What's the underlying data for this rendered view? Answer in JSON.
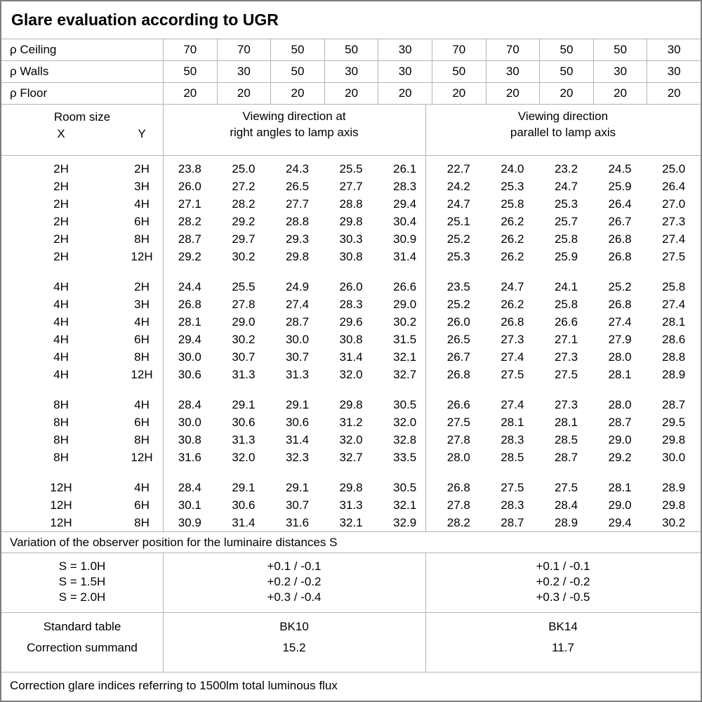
{
  "title": "Glare evaluation according to UGR",
  "colors": {
    "background": "#ffffff",
    "text": "#000000",
    "grid_line": "#b4b4b4",
    "outer_border": "#7f7f7f"
  },
  "reflectance": {
    "rows": [
      {
        "label": "ρ Ceiling",
        "values": [
          "70",
          "70",
          "50",
          "50",
          "30",
          "70",
          "70",
          "50",
          "50",
          "30"
        ]
      },
      {
        "label": "ρ Walls",
        "values": [
          "50",
          "30",
          "50",
          "30",
          "30",
          "50",
          "30",
          "50",
          "30",
          "30"
        ]
      },
      {
        "label": "ρ Floor",
        "values": [
          "20",
          "20",
          "20",
          "20",
          "20",
          "20",
          "20",
          "20",
          "20",
          "20"
        ]
      }
    ]
  },
  "header": {
    "room_size_label": "Room size",
    "x_label": "X",
    "y_label": "Y",
    "left_line1": "Viewing direction at",
    "left_line2": "right angles to lamp axis",
    "right_line1": "Viewing direction",
    "right_line2": "parallel to lamp axis"
  },
  "groups": [
    {
      "rows": [
        {
          "x": "2H",
          "y": "2H",
          "left": [
            "23.8",
            "25.0",
            "24.3",
            "25.5",
            "26.1"
          ],
          "right": [
            "22.7",
            "24.0",
            "23.2",
            "24.5",
            "25.0"
          ]
        },
        {
          "x": "2H",
          "y": "3H",
          "left": [
            "26.0",
            "27.2",
            "26.5",
            "27.7",
            "28.3"
          ],
          "right": [
            "24.2",
            "25.3",
            "24.7",
            "25.9",
            "26.4"
          ]
        },
        {
          "x": "2H",
          "y": "4H",
          "left": [
            "27.1",
            "28.2",
            "27.7",
            "28.8",
            "29.4"
          ],
          "right": [
            "24.7",
            "25.8",
            "25.3",
            "26.4",
            "27.0"
          ]
        },
        {
          "x": "2H",
          "y": "6H",
          "left": [
            "28.2",
            "29.2",
            "28.8",
            "29.8",
            "30.4"
          ],
          "right": [
            "25.1",
            "26.2",
            "25.7",
            "26.7",
            "27.3"
          ]
        },
        {
          "x": "2H",
          "y": "8H",
          "left": [
            "28.7",
            "29.7",
            "29.3",
            "30.3",
            "30.9"
          ],
          "right": [
            "25.2",
            "26.2",
            "25.8",
            "26.8",
            "27.4"
          ]
        },
        {
          "x": "2H",
          "y": "12H",
          "left": [
            "29.2",
            "30.2",
            "29.8",
            "30.8",
            "31.4"
          ],
          "right": [
            "25.3",
            "26.2",
            "25.9",
            "26.8",
            "27.5"
          ]
        }
      ]
    },
    {
      "rows": [
        {
          "x": "4H",
          "y": "2H",
          "left": [
            "24.4",
            "25.5",
            "24.9",
            "26.0",
            "26.6"
          ],
          "right": [
            "23.5",
            "24.7",
            "24.1",
            "25.2",
            "25.8"
          ]
        },
        {
          "x": "4H",
          "y": "3H",
          "left": [
            "26.8",
            "27.8",
            "27.4",
            "28.3",
            "29.0"
          ],
          "right": [
            "25.2",
            "26.2",
            "25.8",
            "26.8",
            "27.4"
          ]
        },
        {
          "x": "4H",
          "y": "4H",
          "left": [
            "28.1",
            "29.0",
            "28.7",
            "29.6",
            "30.2"
          ],
          "right": [
            "26.0",
            "26.8",
            "26.6",
            "27.4",
            "28.1"
          ]
        },
        {
          "x": "4H",
          "y": "6H",
          "left": [
            "29.4",
            "30.2",
            "30.0",
            "30.8",
            "31.5"
          ],
          "right": [
            "26.5",
            "27.3",
            "27.1",
            "27.9",
            "28.6"
          ]
        },
        {
          "x": "4H",
          "y": "8H",
          "left": [
            "30.0",
            "30.7",
            "30.7",
            "31.4",
            "32.1"
          ],
          "right": [
            "26.7",
            "27.4",
            "27.3",
            "28.0",
            "28.8"
          ]
        },
        {
          "x": "4H",
          "y": "12H",
          "left": [
            "30.6",
            "31.3",
            "31.3",
            "32.0",
            "32.7"
          ],
          "right": [
            "26.8",
            "27.5",
            "27.5",
            "28.1",
            "28.9"
          ]
        }
      ]
    },
    {
      "rows": [
        {
          "x": "8H",
          "y": "4H",
          "left": [
            "28.4",
            "29.1",
            "29.1",
            "29.8",
            "30.5"
          ],
          "right": [
            "26.6",
            "27.4",
            "27.3",
            "28.0",
            "28.7"
          ]
        },
        {
          "x": "8H",
          "y": "6H",
          "left": [
            "30.0",
            "30.6",
            "30.6",
            "31.2",
            "32.0"
          ],
          "right": [
            "27.5",
            "28.1",
            "28.1",
            "28.7",
            "29.5"
          ]
        },
        {
          "x": "8H",
          "y": "8H",
          "left": [
            "30.8",
            "31.3",
            "31.4",
            "32.0",
            "32.8"
          ],
          "right": [
            "27.8",
            "28.3",
            "28.5",
            "29.0",
            "29.8"
          ]
        },
        {
          "x": "8H",
          "y": "12H",
          "left": [
            "31.6",
            "32.0",
            "32.3",
            "32.7",
            "33.5"
          ],
          "right": [
            "28.0",
            "28.5",
            "28.7",
            "29.2",
            "30.0"
          ]
        }
      ]
    },
    {
      "rows": [
        {
          "x": "12H",
          "y": "4H",
          "left": [
            "28.4",
            "29.1",
            "29.1",
            "29.8",
            "30.5"
          ],
          "right": [
            "26.8",
            "27.5",
            "27.5",
            "28.1",
            "28.9"
          ]
        },
        {
          "x": "12H",
          "y": "6H",
          "left": [
            "30.1",
            "30.6",
            "30.7",
            "31.3",
            "32.1"
          ],
          "right": [
            "27.8",
            "28.3",
            "28.4",
            "29.0",
            "29.8"
          ]
        },
        {
          "x": "12H",
          "y": "8H",
          "left": [
            "30.9",
            "31.4",
            "31.6",
            "32.1",
            "32.9"
          ],
          "right": [
            "28.2",
            "28.7",
            "28.9",
            "29.4",
            "30.2"
          ]
        }
      ]
    }
  ],
  "variation": {
    "note": "Variation of the observer position for the luminaire distances S",
    "s_labels": [
      "S = 1.0H",
      "S = 1.5H",
      "S = 2.0H"
    ],
    "left": [
      "+0.1 / -0.1",
      "+0.2 / -0.2",
      "+0.3 / -0.4"
    ],
    "right": [
      "+0.1 / -0.1",
      "+0.2 / -0.2",
      "+0.3 / -0.5"
    ]
  },
  "standard": {
    "row_labels": [
      "Standard table",
      "Correction summand"
    ],
    "left": [
      "BK10",
      "15.2"
    ],
    "right": [
      "BK14",
      "11.7"
    ]
  },
  "footer": "Correction glare indices referring to 1500lm total luminous flux"
}
